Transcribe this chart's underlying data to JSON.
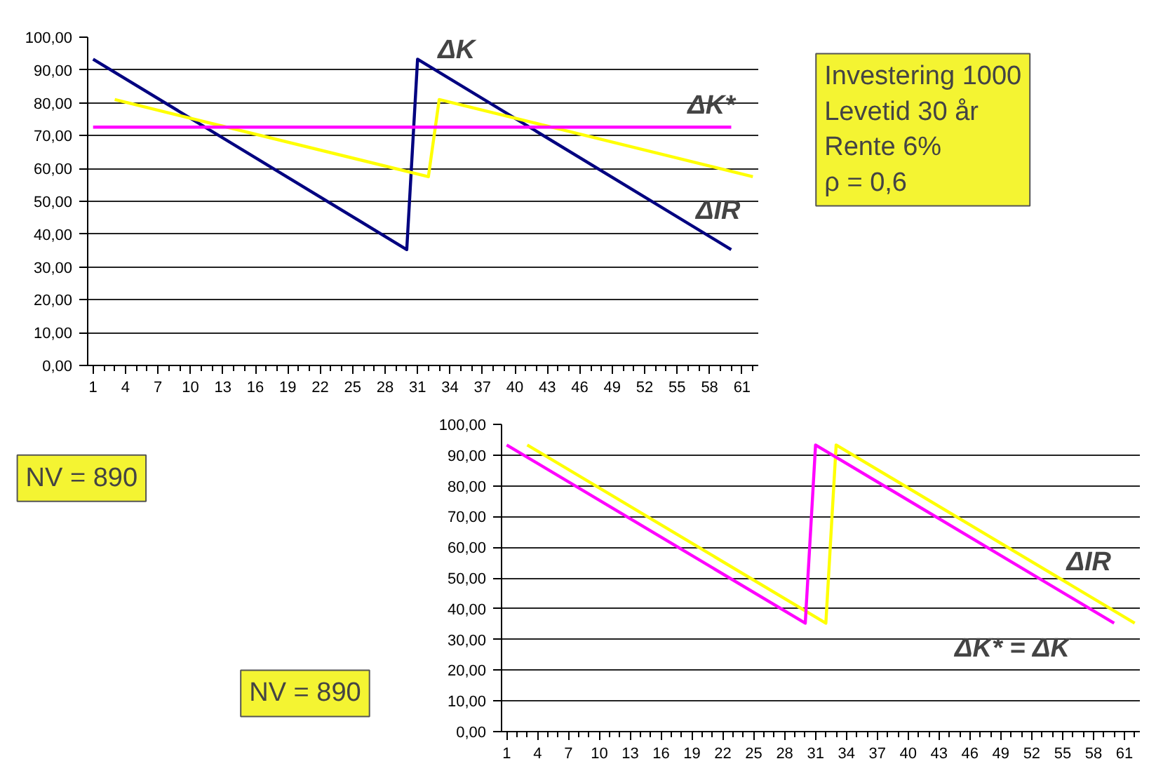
{
  "chart_data": [
    {
      "type": "line",
      "xlim": [
        0.5,
        62.5
      ],
      "ylim": [
        0,
        100
      ],
      "xticks": [
        1,
        4,
        7,
        10,
        13,
        16,
        19,
        22,
        25,
        28,
        31,
        34,
        37,
        40,
        43,
        46,
        49,
        52,
        55,
        58,
        61
      ],
      "yticks": [
        {
          "value": 0,
          "label": "0,00"
        },
        {
          "value": 10,
          "label": "10,00"
        },
        {
          "value": 20,
          "label": "20,00"
        },
        {
          "value": 30,
          "label": "30,00"
        },
        {
          "value": 40,
          "label": "40,00"
        },
        {
          "value": 50,
          "label": "50,00"
        },
        {
          "value": 60,
          "label": "60,00"
        },
        {
          "value": 70,
          "label": "70,00"
        },
        {
          "value": 80,
          "label": "80,00"
        },
        {
          "value": 90,
          "label": "90,00"
        },
        {
          "value": 100,
          "label": "100,00"
        }
      ],
      "grid": "y",
      "line_style": "solid",
      "series": [
        {
          "color": "#000080",
          "x": [
            1,
            30,
            31,
            60
          ],
          "values": [
            93.3,
            35.3,
            93.3,
            35.3
          ]
        },
        {
          "color": "#ffff00",
          "x": [
            3,
            32,
            33,
            62
          ],
          "values": [
            81.0,
            57.5,
            81.0,
            57.5
          ]
        },
        {
          "color": "#ff00ff",
          "x": [
            1,
            60
          ],
          "values": [
            72.6,
            72.6
          ]
        }
      ],
      "annotations": [
        "ΔK",
        "ΔK*",
        "ΔIR",
        "Investering 1000\nLevetid 30 år\nRente 6%\nρ = 0,6",
        "NV = 890"
      ]
    },
    {
      "type": "line",
      "xlim": [
        0.5,
        62.5
      ],
      "ylim": [
        0,
        100
      ],
      "xticks": [
        1,
        4,
        7,
        10,
        13,
        16,
        19,
        22,
        25,
        28,
        31,
        34,
        37,
        40,
        43,
        46,
        49,
        52,
        55,
        58,
        61
      ],
      "yticks": [
        {
          "value": 0,
          "label": "0,00"
        },
        {
          "value": 10,
          "label": "10,00"
        },
        {
          "value": 20,
          "label": "20,00"
        },
        {
          "value": 30,
          "label": "30,00"
        },
        {
          "value": 40,
          "label": "40,00"
        },
        {
          "value": 50,
          "label": "50,00"
        },
        {
          "value": 60,
          "label": "60,00"
        },
        {
          "value": 70,
          "label": "70,00"
        },
        {
          "value": 80,
          "label": "80,00"
        },
        {
          "value": 90,
          "label": "90,00"
        },
        {
          "value": 100,
          "label": "100,00"
        }
      ],
      "grid": "y",
      "line_style": "solid",
      "series": [
        {
          "color": "#ffff00",
          "x": [
            3,
            32,
            33,
            62
          ],
          "values": [
            93.3,
            35.3,
            93.3,
            35.3
          ]
        },
        {
          "color": "#ff00ff",
          "x": [
            1,
            30,
            31,
            60
          ],
          "values": [
            93.3,
            35.3,
            93.3,
            35.3
          ]
        }
      ],
      "annotations": [
        "ΔIR",
        "ΔK* = ΔK",
        "NV = 890"
      ]
    }
  ]
}
